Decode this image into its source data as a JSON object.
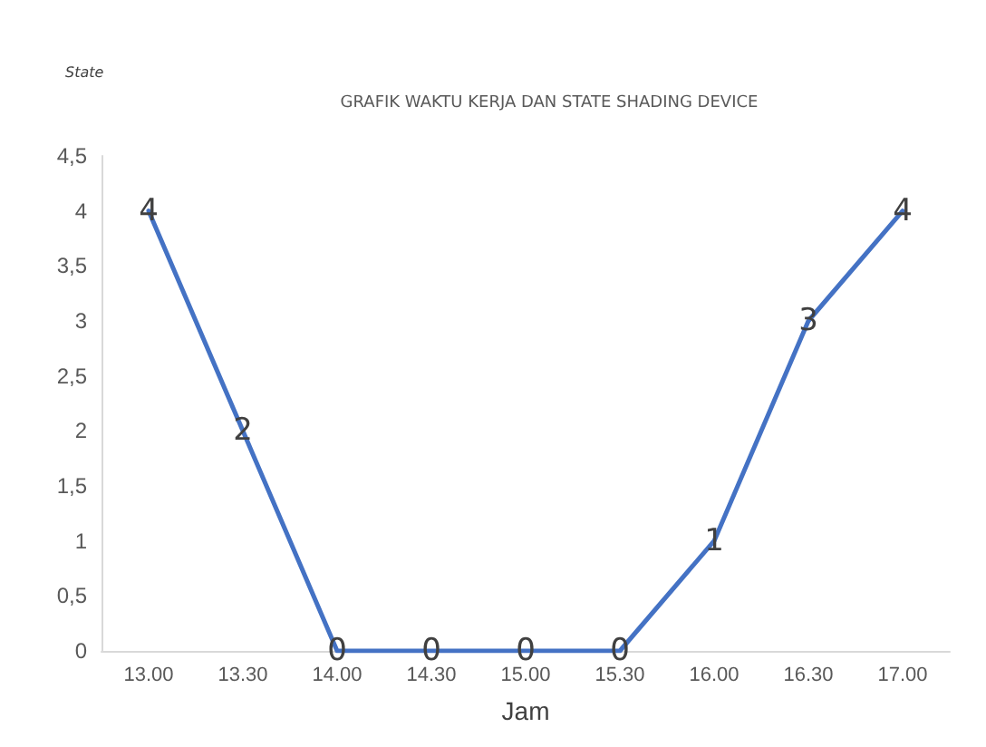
{
  "chart_data": {
    "type": "line",
    "title": "GRAFIK WAKTU KERJA DAN STATE SHADING DEVICE",
    "ylabel": "State",
    "xlabel": "Jam",
    "categories": [
      "13.00",
      "13.30",
      "14.00",
      "14.30",
      "15.00",
      "15.30",
      "16.00",
      "16.30",
      "17.00"
    ],
    "series": [
      {
        "color": "#4472c4",
        "values": [
          4,
          2,
          0,
          0,
          0,
          0,
          1,
          3,
          4
        ]
      }
    ],
    "ylim": [
      0,
      4.5
    ],
    "yticks": [
      0,
      {
        "value": 0.5,
        "label": "0,5"
      },
      1,
      {
        "value": 1.5,
        "label": "1,5"
      },
      2,
      {
        "value": 2.5,
        "label": "2,5"
      },
      3,
      {
        "value": 3.5,
        "label": "3,5"
      },
      4,
      {
        "value": 4.5,
        "label": "4,5"
      }
    ],
    "grid": false,
    "marker": "none",
    "line_style": "solid",
    "data_labels": true
  }
}
